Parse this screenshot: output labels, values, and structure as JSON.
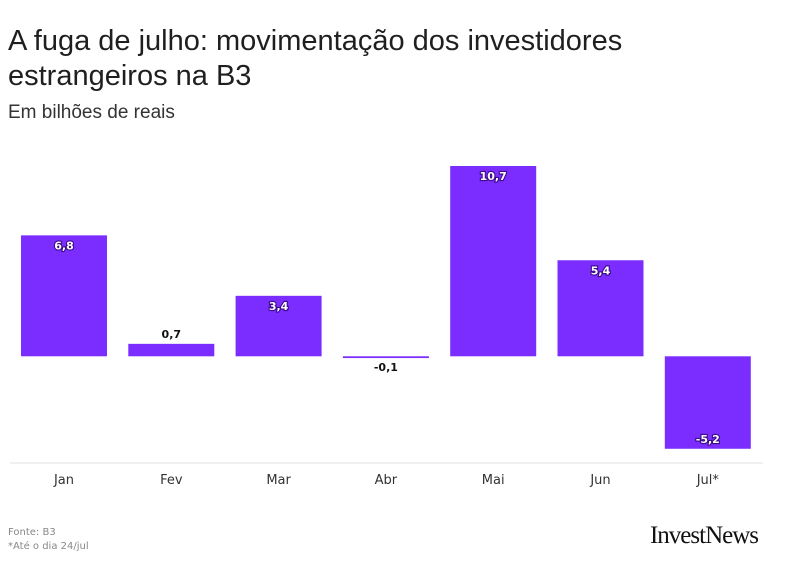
{
  "header": {
    "title": "A fuga de julho: movimentação dos investidores estrangeiros na B3",
    "subtitle": "Em bilhões de reais"
  },
  "chart_data": {
    "type": "bar",
    "categories": [
      "Jan",
      "Fev",
      "Mar",
      "Abr",
      "Mai",
      "Jun",
      "Jul*"
    ],
    "values": [
      6.8,
      0.7,
      3.4,
      -0.1,
      10.7,
      5.4,
      -5.2
    ],
    "value_labels": [
      "6,8",
      "0,7",
      "3,4",
      "-0,1",
      "10,7",
      "5,4",
      "-5,2"
    ],
    "title": "A fuga de julho: movimentação dos investidores estrangeiros na B3",
    "subtitle": "Em bilhões de reais",
    "xlabel": "",
    "ylabel": "",
    "ylim": [
      -6,
      10.7
    ],
    "grid": false,
    "bar_color": "#7b2cff"
  },
  "footer": {
    "source": "Fonte: B3",
    "note": "*Até o dia 24/jul"
  },
  "brand": {
    "logo_text": "InvestNews"
  }
}
